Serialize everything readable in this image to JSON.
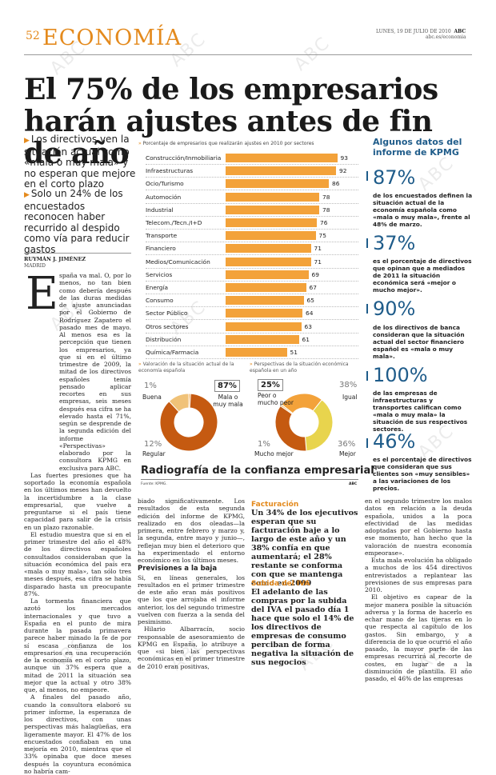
{
  "header": {
    "page_number": "52",
    "section": "ECONOMÍA",
    "date": "LUNES, 19 DE JULIO DE 2010",
    "brand": "ABC",
    "site": "abc.es/economia"
  },
  "headline": "El 75% de los empresarios harán ajustes antes de fin de año",
  "bullets": [
    "Los directivos ven la situación actual como «mala o muy mala» y no esperan que mejore en el corto plazo",
    "Solo un 24% de los encuestados reconocen haber recurrido al despido como vía para reducir gastos"
  ],
  "byline": {
    "author": "RUYMÁN J. JIMÉNEZ",
    "place": "MADRID"
  },
  "article": {
    "dropcap": "E",
    "col1": [
      "spaña va mal. O, por lo menos, no tan bien como debería después de las duras medidas de ajuste anunciadas por el Gobierno de Rodríguez Zapatero el pasado mes de mayo. Al menos esa es la percepción que tienen los empresarios, ya que si en el último trimestre de 2009, la mitad de los directivos españoles temía pensado aplicar recortes en sus empresas, seis meses después esa cifra se ha elevado hasta el 71%, según se desprende de la segunda edición del informe «Perspectivas» elaborado por la consultora KPMG en exclusiva para ABC.",
      "Las fuertes presiones que ha soportado la economía española en los últimos meses han devuelto la incertidumbre a la clase empresarial, que vuelve a preguntarse si el país tiene capacidad para salir de la crisis en un plazo razonable.",
      "El estudio muestra que si en el primer trimestre del año el 48% de los directivos españoles consultados consideraban que la situación económica del país era «mala o muy mala», tan sólo tres meses después, esa cifra se había disparado hasta un preocupante 87%.",
      "La tormenta financiera que azotó los mercados internacionales y que tuvo a España en el punto de mira durante la pasada primavera parece haber minado la fe de por sí escasa confianza de los empresarios en una recuperación de la economía en el corto plazo, aunque un 37% espera que a mitad de 2011 la situación sea mejor que la actual y otro 38% que, al menos, no empeore.",
      "A finales del pasado año, cuando la consultora elaboró su primer informe, la esperanza de los directivos, con unas perspectivas más halagüeñas, era ligeramente mayor. El 47% de los encuestados confiaban en una mejoría en 2010, mientras que el 33% opinaba que doce meses después la coyuntura económica no habría cam-"
    ],
    "col2": [
      "biado significativamente. Los resultados de esta segunda edición del informe de KPMG, realizado en dos oleadas—la primera, entre febrero y marzo y, la segunda, entre mayo y junio—, reflejan muy bien el deterioro que ha experimentado el entorno económico en los últimos meses."
    ],
    "col2_head": "Previsiones a la baja",
    "col2b": [
      "Si, en líneas generales, los resultados en el primer trimestre de este año eran más positivos que los que arrojaba el informe anterior, los del segundo trimestre vuelven con fuerza a la senda del pesimismo.",
      "Hilario Albarracín, socio responsable de asesoramiento de KPMG en España, lo atribuye a que «si bien las perspectivas económicas en el primer trimestre de 2010 eran positivas,"
    ],
    "col4": [
      "en el segundo trimestre los malos datos en relación a la deuda española, unidos a la poca efectividad de las medidas adoptadas por el Gobierno hasta ese momento, han hecho que la valoración de nuestra economía empeorase».",
      "Esta mala evolución ha obligado a muchos de los 454 directivos entrevistados a replantear las previsiones de sus empresas para 2010.",
      "El objetivo es capear de la mejor manera posible la situación adversa y la forma de hacerlo es echar mano de las tijeras en lo que respecta al capítulo de los gastos. Sin embargo, y a diferencia de lo que ocurrió el año pasado, la mayor parte de las empresas recurrirá al recorte de costes, en lugar de a la disminución de plantilla. El año pasado, el 46% de las empresas"
    ],
    "box1_head": "Facturación",
    "box1_lead": "Un 34% de los ejecutivos esperan que su facturación baje a lo largo de este año y un 38% confía en que aumentará; el 28% restante se conforma con que se mantenga como en 2009",
    "box2_head": "Subida del IVA",
    "box2_lead": "El adelanto de las compras por la subida del IVA el pasado día 1 hace que solo el 14% de los directivos de empresas de consumo perciban de forma negativa la situación de sus negocios"
  },
  "chart_data": [
    {
      "type": "bar",
      "title": "Porcentaje de empresarios que realizarán ajustes en 2010 por sectores",
      "categories": [
        "Construcción/Inmobiliaria",
        "Infraestructuras",
        "Ocio/Turismo",
        "Automoción",
        "Industrial",
        "Telecom./Tecn./I+D",
        "Transporte",
        "Financiero",
        "Medios/Comunicación",
        "Servicios",
        "Energía",
        "Consumo",
        "Sector Público",
        "Otros sectores",
        "Distribución",
        "Química/Farmacia"
      ],
      "values": [
        93,
        92,
        86,
        78,
        78,
        76,
        75,
        71,
        71,
        69,
        67,
        65,
        64,
        63,
        61,
        51
      ],
      "color": "#f3a23a"
    },
    {
      "type": "pie",
      "title": "Valoración de la situación actual de la economía española",
      "slices": [
        {
          "label": "Buena",
          "value": 1,
          "color": "#f3a23a"
        },
        {
          "label": "Mala o muy mala",
          "value": 87,
          "color": "#c55a11"
        },
        {
          "label": "Regular",
          "value": 12,
          "color": "#f0c278"
        }
      ]
    },
    {
      "type": "pie",
      "title": "Perspectivas de la situación económica española en un año",
      "slices": [
        {
          "label": "Peor o mucho peor",
          "value": 25,
          "color": "#f3a23a"
        },
        {
          "label": "Igual",
          "value": 38,
          "color": "#e8d44d"
        },
        {
          "label": "Mejor",
          "value": 36,
          "color": "#c55a11"
        },
        {
          "label": "Mucho mejor",
          "value": 1,
          "color": "#f0c278"
        }
      ]
    }
  ],
  "chart_labels": {
    "pie1": {
      "buena_pct": "1%",
      "mala_pct": "87%",
      "regular_pct": "12%",
      "buena": "Buena",
      "mala": "Mala o muy mala",
      "regular": "Regular"
    },
    "pie2": {
      "peor_pct": "25%",
      "igual_pct": "38%",
      "mucho_pct": "1%",
      "mejor_pct": "36%",
      "peor": "Peor o mucho peor",
      "igual": "Igual",
      "mucho": "Mucho mejor",
      "mejor": "Mejor"
    }
  },
  "graphic_title": "Radiografía de la confianza empresarial",
  "graphic_source": "Fuente: KPMG.",
  "graphic_brand": "ABC",
  "sidebar": {
    "title": "Algunos datos del informe de KPMG",
    "items": [
      {
        "big": "87%",
        "text": "de los encuestados definen la situación actual de la economía española como «mala o muy mala», frente al 48% de marzo."
      },
      {
        "big": "37%",
        "text": "es el porcentaje de directivos que opinan que a mediados de 2011 la situación económica será «mejor o mucho mejor»."
      },
      {
        "big": "90%",
        "text": "de los directivos de banca consideran que la situación actual del sector financiero español es «mala o muy mala»."
      },
      {
        "big": "100%",
        "text": "de las empresas de infraestructuras y transportes califican como «mala o muy mala» la situación de sus respectivos sectores."
      },
      {
        "big": "46%",
        "text": "es el porcentaje de directivos que consideran que sus clientes son «muy sensibles» a las variaciones de los precios."
      }
    ]
  },
  "watermark": "ABC"
}
